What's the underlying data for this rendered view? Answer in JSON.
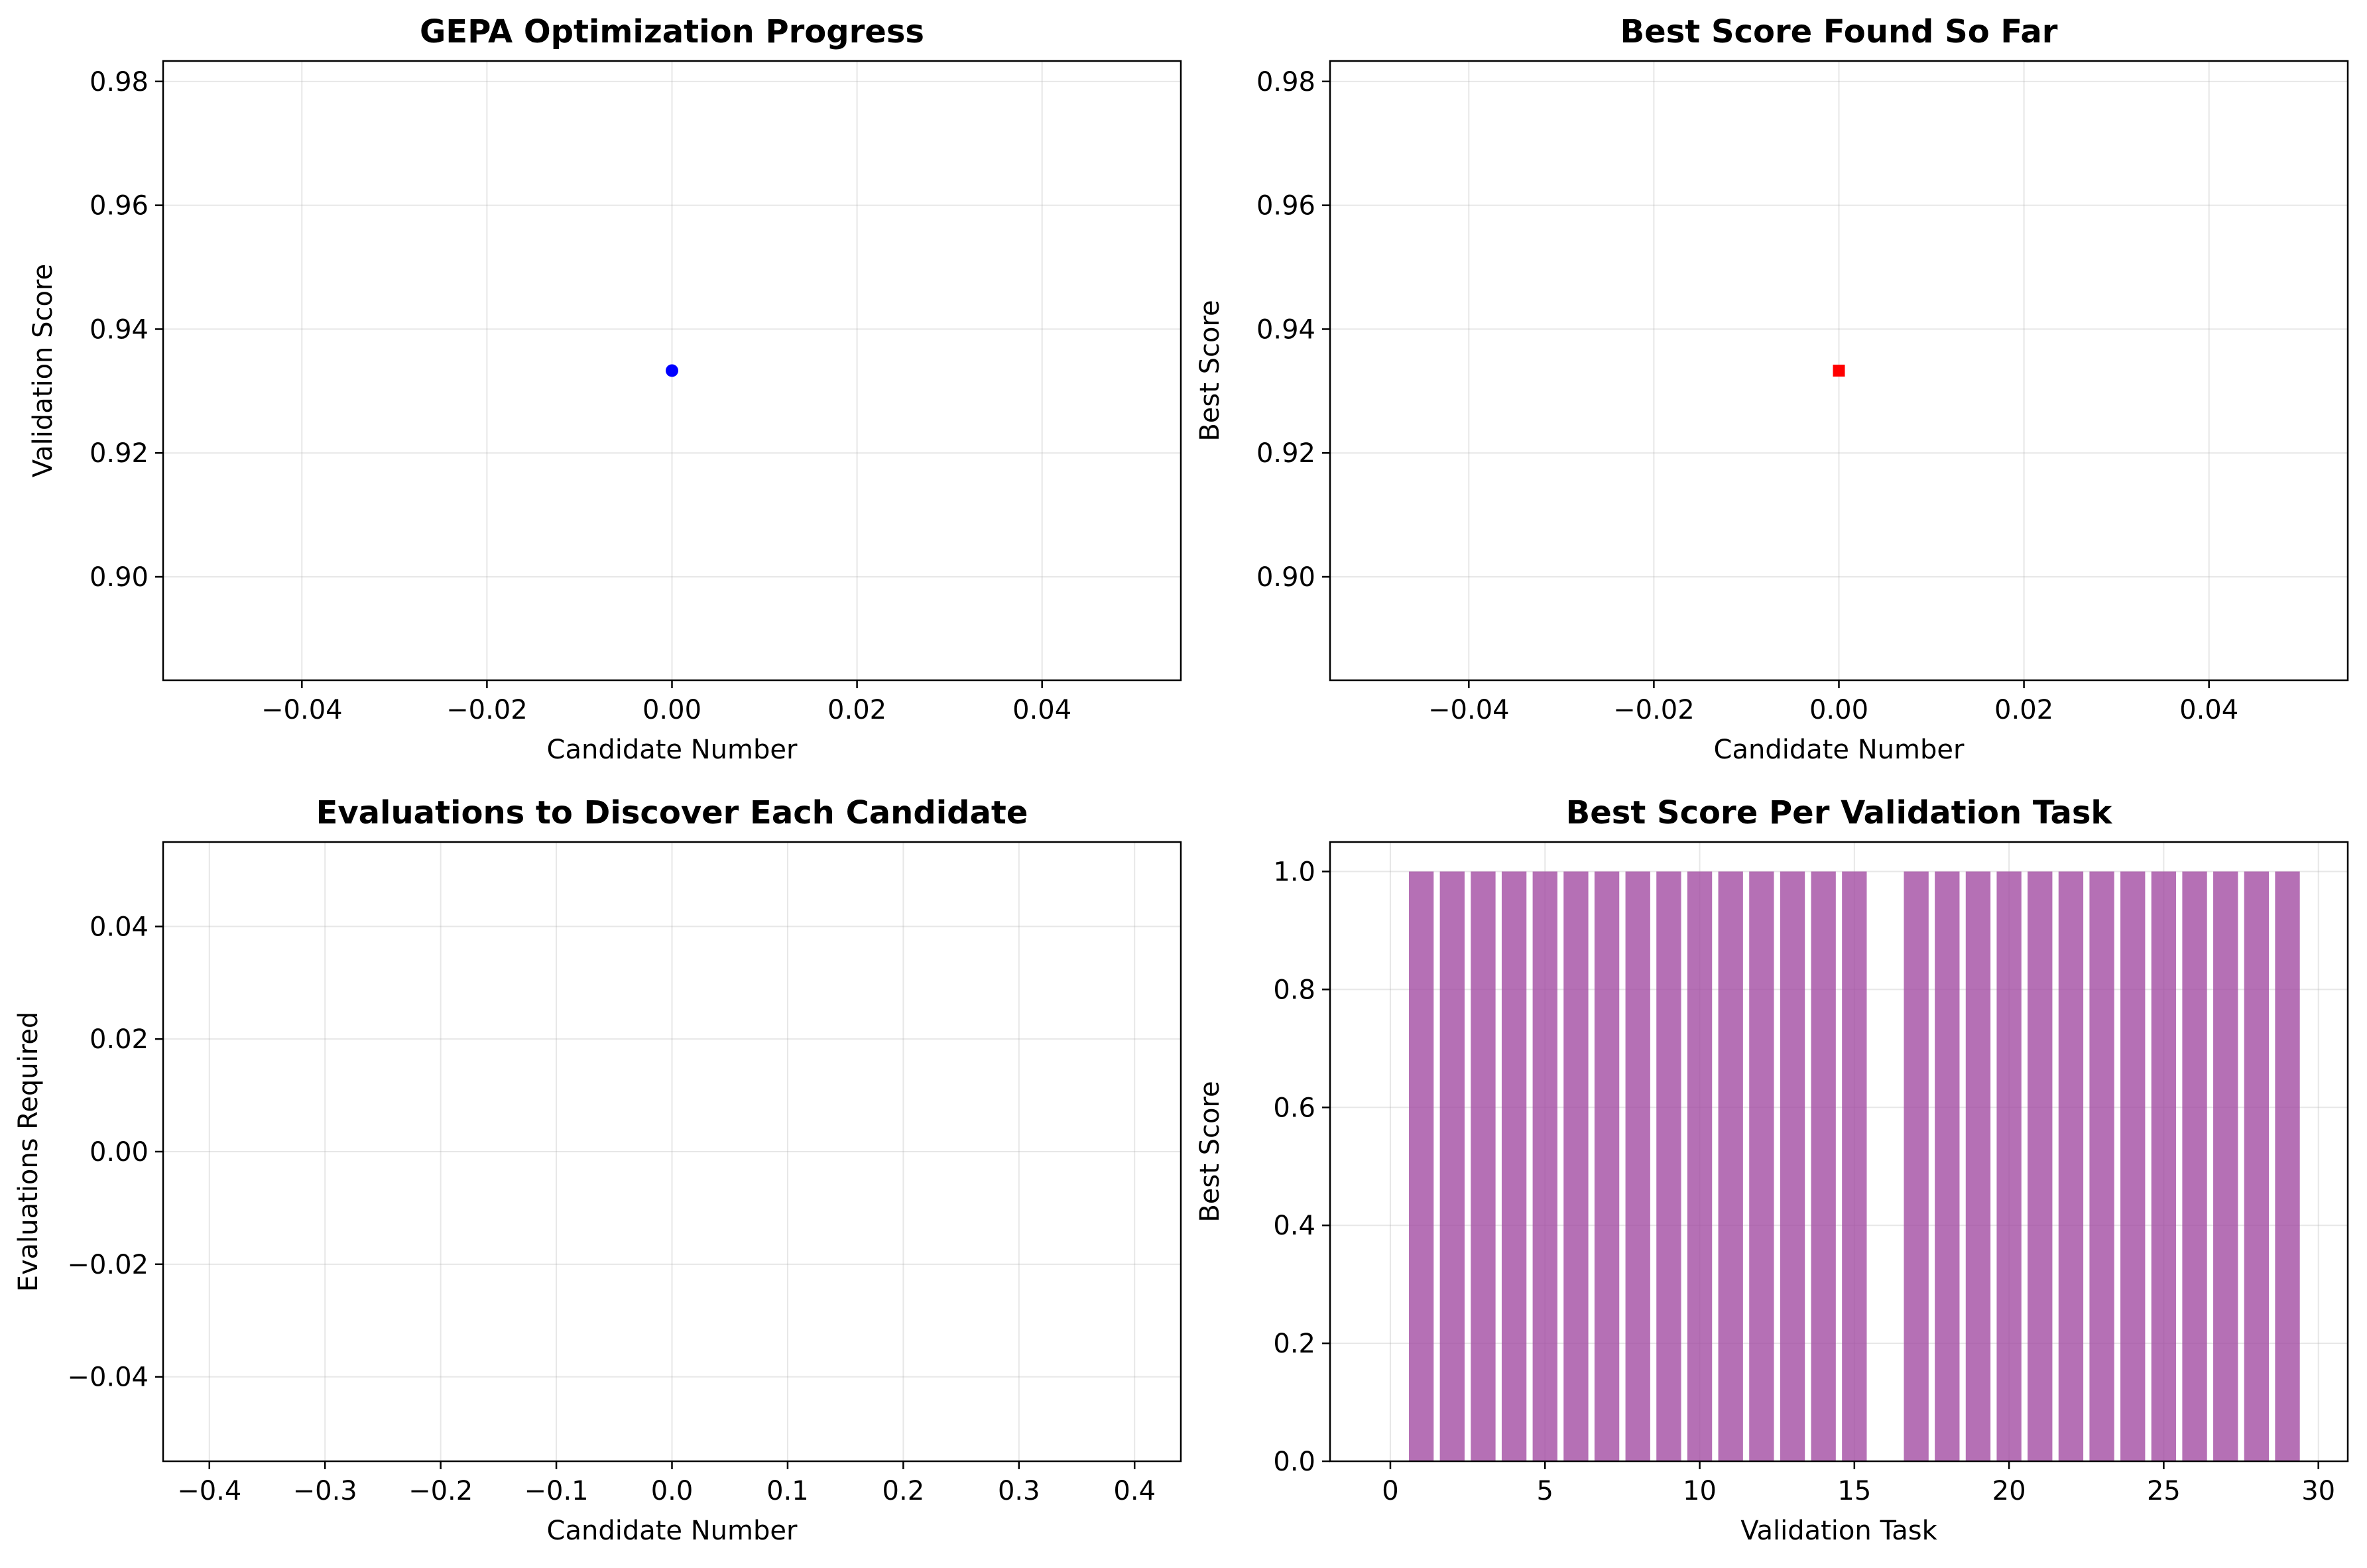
{
  "chart_data": [
    {
      "type": "scatter",
      "title": "GEPA Optimization Progress",
      "xlabel": "Candidate Number",
      "ylabel": "Validation Score",
      "xlim": [
        -0.055,
        0.055
      ],
      "ylim": [
        0.8833,
        0.9833
      ],
      "xticks": [
        -0.04,
        -0.02,
        0.0,
        0.02,
        0.04
      ],
      "xtick_labels": [
        "−0.04",
        "−0.02",
        "0.00",
        "0.02",
        "0.04"
      ],
      "yticks": [
        0.9,
        0.92,
        0.94,
        0.96,
        0.98
      ],
      "ytick_labels": [
        "0.90",
        "0.92",
        "0.94",
        "0.96",
        "0.98"
      ],
      "grid": true,
      "marker": "circle",
      "color": "#0000ff",
      "points": [
        {
          "x": 0,
          "y": 0.9333
        }
      ]
    },
    {
      "type": "scatter",
      "title": "Best Score Found So Far",
      "xlabel": "Candidate Number",
      "ylabel": "Best Score",
      "xlim": [
        -0.055,
        0.055
      ],
      "ylim": [
        0.8833,
        0.9833
      ],
      "xticks": [
        -0.04,
        -0.02,
        0.0,
        0.02,
        0.04
      ],
      "xtick_labels": [
        "−0.04",
        "−0.02",
        "0.00",
        "0.02",
        "0.04"
      ],
      "yticks": [
        0.9,
        0.92,
        0.94,
        0.96,
        0.98
      ],
      "ytick_labels": [
        "0.90",
        "0.92",
        "0.94",
        "0.96",
        "0.98"
      ],
      "grid": true,
      "marker": "square",
      "color": "#ff0000",
      "points": [
        {
          "x": 0,
          "y": 0.9333
        }
      ]
    },
    {
      "type": "bar",
      "title": "Evaluations to Discover Each Candidate",
      "xlabel": "Candidate Number",
      "ylabel": "Evaluations Required",
      "xlim": [
        -0.44,
        0.44
      ],
      "ylim": [
        -0.055,
        0.055
      ],
      "xticks": [
        -0.4,
        -0.3,
        -0.2,
        -0.1,
        0.0,
        0.1,
        0.2,
        0.3,
        0.4
      ],
      "xtick_labels": [
        "−0.4",
        "−0.3",
        "−0.2",
        "−0.1",
        "0.0",
        "0.1",
        "0.2",
        "0.3",
        "0.4"
      ],
      "yticks": [
        -0.04,
        -0.02,
        0.0,
        0.02,
        0.04
      ],
      "ytick_labels": [
        "−0.04",
        "−0.02",
        "0.00",
        "0.02",
        "0.04"
      ],
      "grid": true,
      "categories": [],
      "values": []
    },
    {
      "type": "bar",
      "title": "Best Score Per Validation Task",
      "xlabel": "Validation Task",
      "ylabel": "Best Score",
      "xlim": [
        -1.95,
        30.95
      ],
      "ylim": [
        0,
        1.05
      ],
      "xticks": [
        0,
        5,
        10,
        15,
        20,
        25,
        30
      ],
      "xtick_labels": [
        "0",
        "5",
        "10",
        "15",
        "20",
        "25",
        "30"
      ],
      "yticks": [
        0.0,
        0.2,
        0.4,
        0.6,
        0.8,
        1.0
      ],
      "ytick_labels": [
        "0.0",
        "0.2",
        "0.4",
        "0.6",
        "0.8",
        "1.0"
      ],
      "grid": true,
      "color": "#a24ca2",
      "categories": [
        0,
        1,
        2,
        3,
        4,
        5,
        6,
        7,
        8,
        9,
        10,
        11,
        12,
        13,
        14,
        15,
        16,
        17,
        18,
        19,
        20,
        21,
        22,
        23,
        24,
        25,
        26,
        27,
        28,
        29
      ],
      "values": [
        0,
        1,
        1,
        1,
        1,
        1,
        1,
        1,
        1,
        1,
        1,
        1,
        1,
        1,
        1,
        1,
        0,
        1,
        1,
        1,
        1,
        1,
        1,
        1,
        1,
        1,
        1,
        1,
        1,
        1
      ]
    }
  ]
}
